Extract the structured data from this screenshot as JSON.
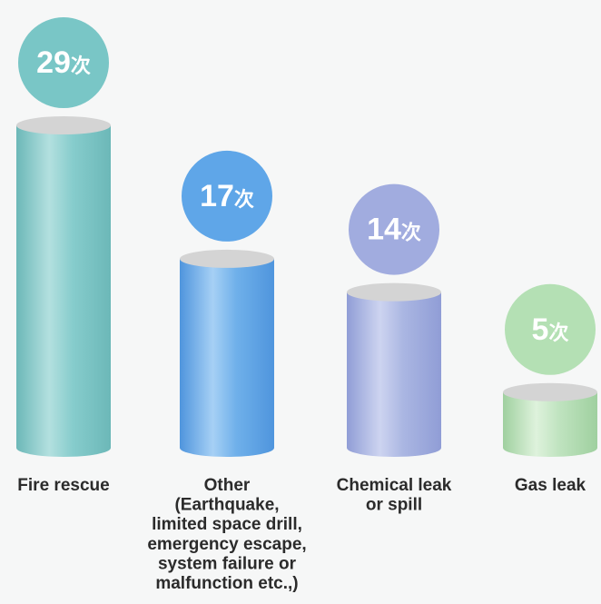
{
  "chart_data": {
    "type": "bar",
    "title": "",
    "xlabel": "",
    "ylabel": "",
    "categories": [
      [
        "Fire rescue"
      ],
      [
        "Other",
        "(Earthquake,",
        "limited space drill,",
        "emergency escape,",
        "system failure or",
        "malfunction etc.,)"
      ],
      [
        "Chemical leak",
        "or spill"
      ],
      [
        "Gas leak"
      ]
    ],
    "values": [
      29,
      17,
      14,
      5
    ],
    "value_labels": [
      "29",
      "17",
      "14",
      "5"
    ],
    "unit": "次",
    "grid": false,
    "legend": "none",
    "colors": {
      "bars": [
        "#86cccc",
        "#6fb0ea",
        "#aab6e2",
        "#bfe3bf"
      ],
      "bars_light": [
        "#b3e0df",
        "#a6d0f5",
        "#cdd4f0",
        "#def2dc"
      ],
      "bars_dark": [
        "#6cb8b8",
        "#4f95dd",
        "#909dd6",
        "#9fd09f"
      ],
      "bubbles": [
        "#79c6c6",
        "#5fa6e8",
        "#a1acdf",
        "#b4e0b4"
      ],
      "tops": "#d4d4d4",
      "background": "#f6f7f7"
    }
  }
}
